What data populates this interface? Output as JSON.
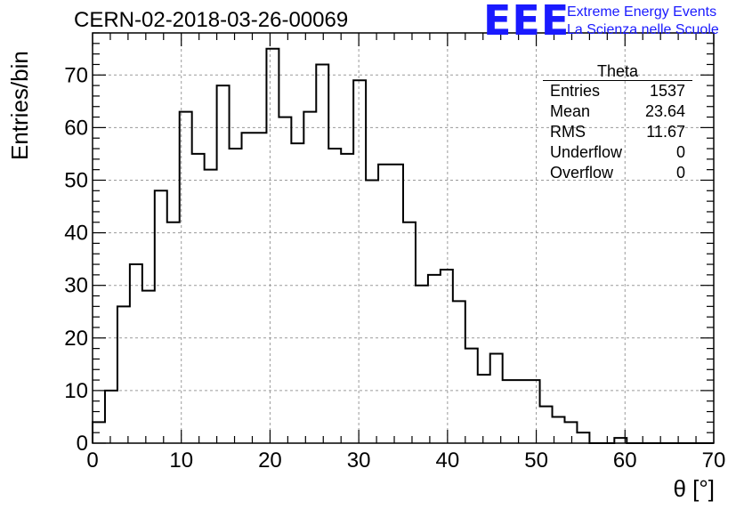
{
  "header": {
    "title": "CERN-02-2018-03-26-00069",
    "logo_mark": "EEE",
    "logo_line1": "Extreme Energy Events",
    "logo_line2": "La Scienza nelle Scuole"
  },
  "stats_box": {
    "name": "Theta",
    "rows": [
      {
        "label": "Entries",
        "value": "1537"
      },
      {
        "label": "Mean",
        "value": "23.64"
      },
      {
        "label": "RMS",
        "value": "11.67"
      },
      {
        "label": "Underflow",
        "value": "0"
      },
      {
        "label": "Overflow",
        "value": "0"
      }
    ]
  },
  "chart_data": {
    "type": "bar",
    "style": "step-histogram",
    "xlabel": "θ [°]",
    "ylabel": "Entries/bin",
    "xlim": [
      0,
      70
    ],
    "ylim": [
      0,
      78
    ],
    "xticks": [
      0,
      10,
      20,
      30,
      40,
      50,
      60,
      70
    ],
    "yticks": [
      0,
      10,
      20,
      30,
      40,
      50,
      60,
      70
    ],
    "grid": true,
    "bin_width": 1.4,
    "values": [
      4,
      10,
      26,
      34,
      29,
      48,
      42,
      63,
      55,
      52,
      68,
      56,
      59,
      59,
      75,
      62,
      57,
      63,
      72,
      56,
      55,
      69,
      50,
      53,
      53,
      42,
      30,
      32,
      33,
      27,
      18,
      13,
      17,
      12,
      12,
      12,
      7,
      5,
      4,
      2,
      0,
      0,
      1,
      0,
      0,
      0,
      0,
      0,
      0,
      0
    ]
  }
}
